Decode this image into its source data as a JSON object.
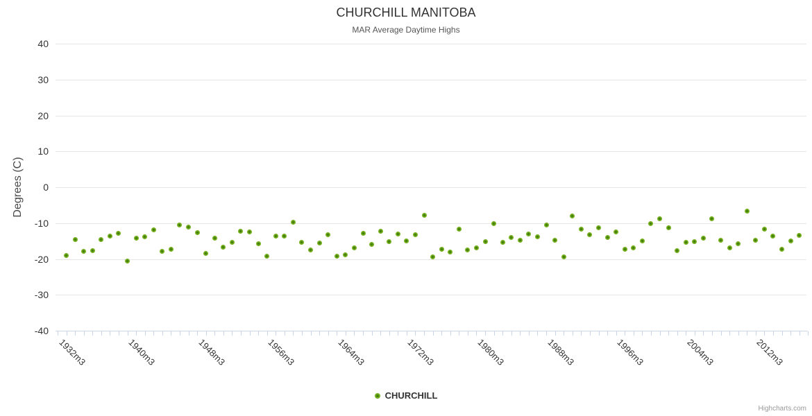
{
  "chart_data": {
    "type": "scatter",
    "title": "CHURCHILL MANITOBA",
    "subtitle": "MAR Average Daytime Highs",
    "ylabel": "Degrees (C)",
    "ylim": [
      -40,
      40
    ],
    "y_ticks": [
      40,
      30,
      20,
      10,
      0,
      -10,
      -20,
      -30,
      -40
    ],
    "grid": "horizontal",
    "legend_position": "bottom-center",
    "x_tick_years": [
      1931,
      2017
    ],
    "x_labels": [
      "1932m3",
      "1940m3",
      "1948m3",
      "1956m3",
      "1964m3",
      "1972m3",
      "1980m3",
      "1988m3",
      "1996m3",
      "2004m3",
      "2012m3"
    ],
    "x_category_suffix": "m3",
    "series": [
      {
        "name": "CHURCHILL",
        "start_year": 1932,
        "values": [
          -19.0,
          -14.5,
          -17.8,
          -17.6,
          -14.5,
          -13.6,
          -12.9,
          -20.5,
          -14.2,
          -13.8,
          -11.8,
          -17.8,
          -17.3,
          -10.5,
          -11.1,
          -12.7,
          -18.5,
          -14.2,
          -16.8,
          -15.4,
          -12.2,
          -12.5,
          -15.7,
          -19.3,
          -13.7,
          -13.7,
          -9.7,
          -15.3,
          -17.5,
          -15.5,
          -13.3,
          -19.3,
          -18.9,
          -17.0,
          -12.8,
          -16.0,
          -12.2,
          -15.1,
          -13.1,
          -14.9,
          -13.2,
          -7.9,
          -19.5,
          -17.2,
          -18.1,
          -11.6,
          -17.4,
          -17.0,
          -15.1,
          -10.2,
          -15.4,
          -14.0,
          -14.8,
          -13.1,
          -13.9,
          -10.6,
          -14.7,
          -19.5,
          -8.0,
          -11.6,
          -13.3,
          -11.4,
          -14.0,
          -12.4,
          -17.2,
          -16.9,
          -14.9,
          -10.2,
          -8.8,
          -11.4,
          -17.6,
          -15.4,
          -15.2,
          -14.2,
          -8.7,
          -14.8,
          -17.0,
          -15.7,
          -6.7,
          -14.7,
          -11.6,
          -13.6,
          -17.2,
          -14.9,
          -13.4
        ]
      }
    ],
    "credits": "Highcharts.com"
  },
  "legend": {
    "label": "CHURCHILL"
  },
  "colors": {
    "marker": "#74b01f",
    "marker_core": "#477f0e",
    "grid": "#e6e6e6",
    "axis": "#ccd6eb",
    "title": "#333333",
    "subtitle": "#555555",
    "labels": "#333333",
    "credits": "#999999"
  }
}
